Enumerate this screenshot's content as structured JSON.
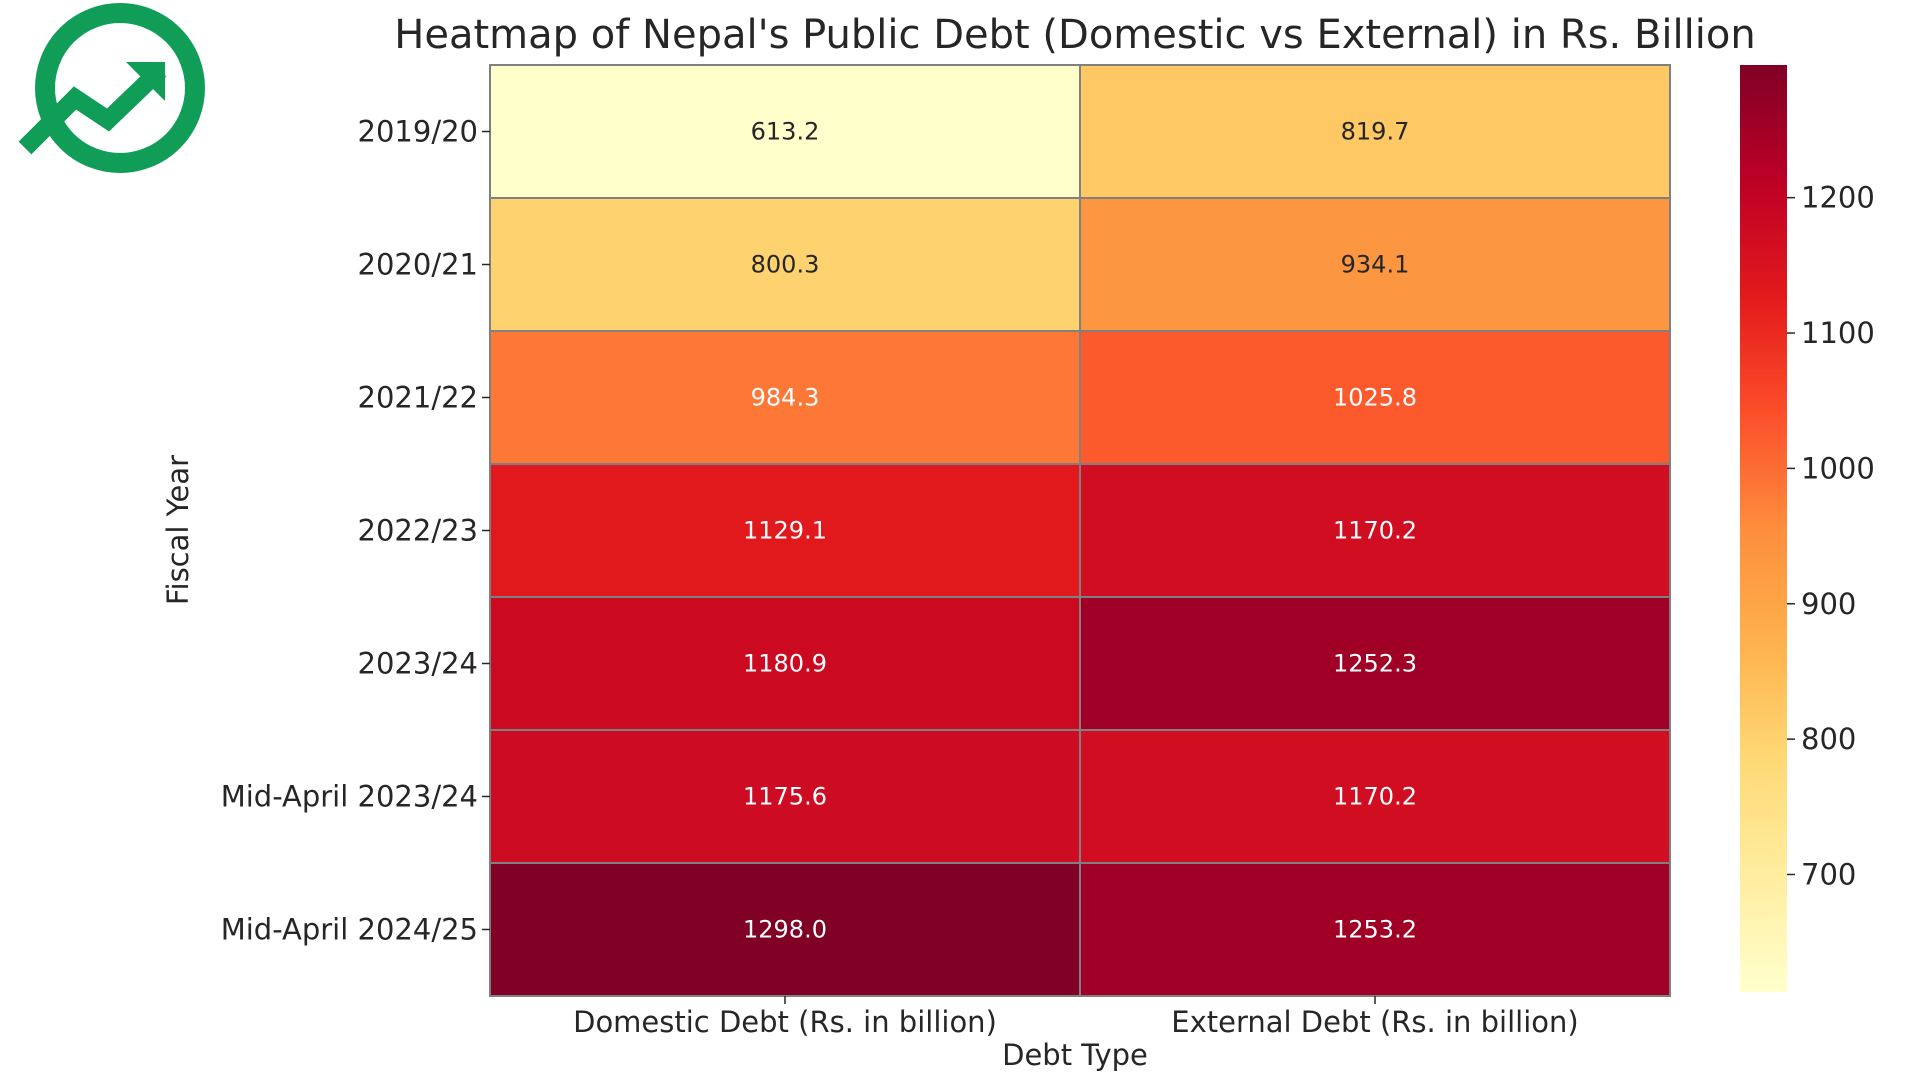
{
  "logo": {
    "name": "growth-chart-logo",
    "color": "#0f9d58"
  },
  "chart_data": {
    "type": "heatmap",
    "title": "Heatmap of Nepal's Public Debt (Domestic vs External) in Rs. Billion",
    "xlabel": "Debt Type",
    "ylabel": "Fiscal Year",
    "columns": [
      "Domestic Debt (Rs. in billion)",
      "External Debt (Rs. in billion)"
    ],
    "rows": [
      "2019/20",
      "2020/21",
      "2021/22",
      "2022/23",
      "2023/24",
      "Mid-April 2023/24",
      "Mid-April 2024/25"
    ],
    "values": [
      [
        613.2,
        819.7
      ],
      [
        800.3,
        934.1
      ],
      [
        984.3,
        1025.8
      ],
      [
        1129.1,
        1170.2
      ],
      [
        1180.9,
        1252.3
      ],
      [
        1175.6,
        1170.2
      ],
      [
        1298.0,
        1253.2
      ]
    ],
    "value_labels": [
      [
        "613.2",
        "819.7"
      ],
      [
        "800.3",
        "934.1"
      ],
      [
        "984.3",
        "1025.8"
      ],
      [
        "1129.1",
        "1170.2"
      ],
      [
        "1180.9",
        "1252.3"
      ],
      [
        "1175.6",
        "1170.2"
      ],
      [
        "1298.0",
        "1253.2"
      ]
    ],
    "colormap": "YlOrRd",
    "colormap_stops": [
      "#ffffcc",
      "#ffeda0",
      "#fed976",
      "#feb24c",
      "#fd8d3c",
      "#fc4e2a",
      "#e31a1c",
      "#bd0026",
      "#800026"
    ],
    "color_range": [
      613.2,
      1298.0
    ],
    "colorbar_ticks": [
      700,
      800,
      900,
      1000,
      1100,
      1200
    ],
    "cell_border_color": "#808080"
  }
}
